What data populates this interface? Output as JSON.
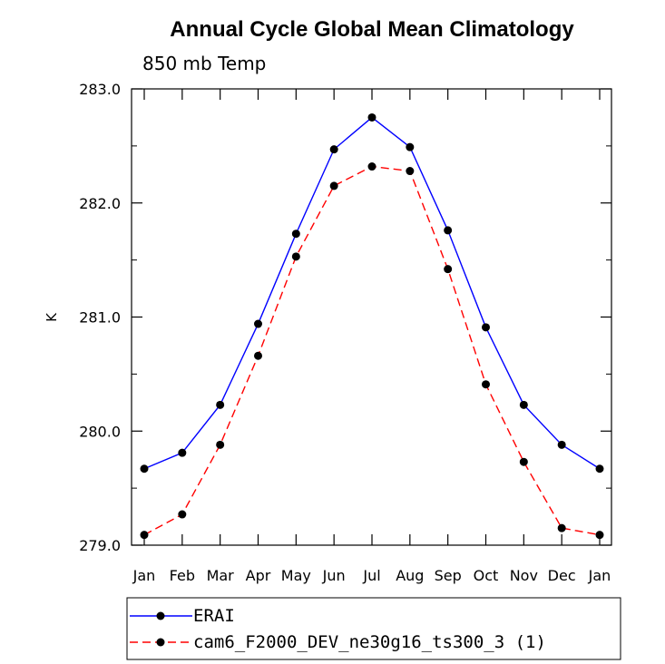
{
  "chart_data": {
    "type": "line",
    "title": "Annual Cycle Global Mean Climatology",
    "subtitle": "850 mb Temp",
    "xlabel": "",
    "ylabel": "K",
    "categories": [
      "Jan",
      "Feb",
      "Mar",
      "Apr",
      "May",
      "Jun",
      "Jul",
      "Aug",
      "Sep",
      "Oct",
      "Nov",
      "Dec",
      "Jan"
    ],
    "ylim": [
      279.0,
      283.0
    ],
    "yticks": [
      "279.0",
      "280.0",
      "281.0",
      "282.0",
      "283.0"
    ],
    "series": [
      {
        "name": "ERAI",
        "color": "#0000ff",
        "dash": "solid",
        "values": [
          279.67,
          279.81,
          280.23,
          280.94,
          281.73,
          282.47,
          282.75,
          282.49,
          281.76,
          280.91,
          280.23,
          279.88,
          279.67
        ]
      },
      {
        "name": "cam6_F2000_DEV_ne30g16_ts300_3 (1)",
        "color": "#ff0000",
        "dash": "dashed",
        "values": [
          279.09,
          279.27,
          279.88,
          280.66,
          281.53,
          282.15,
          282.32,
          282.28,
          281.42,
          280.41,
          279.73,
          279.15,
          279.09
        ]
      }
    ],
    "grid": false,
    "legend_position": "bottom"
  }
}
